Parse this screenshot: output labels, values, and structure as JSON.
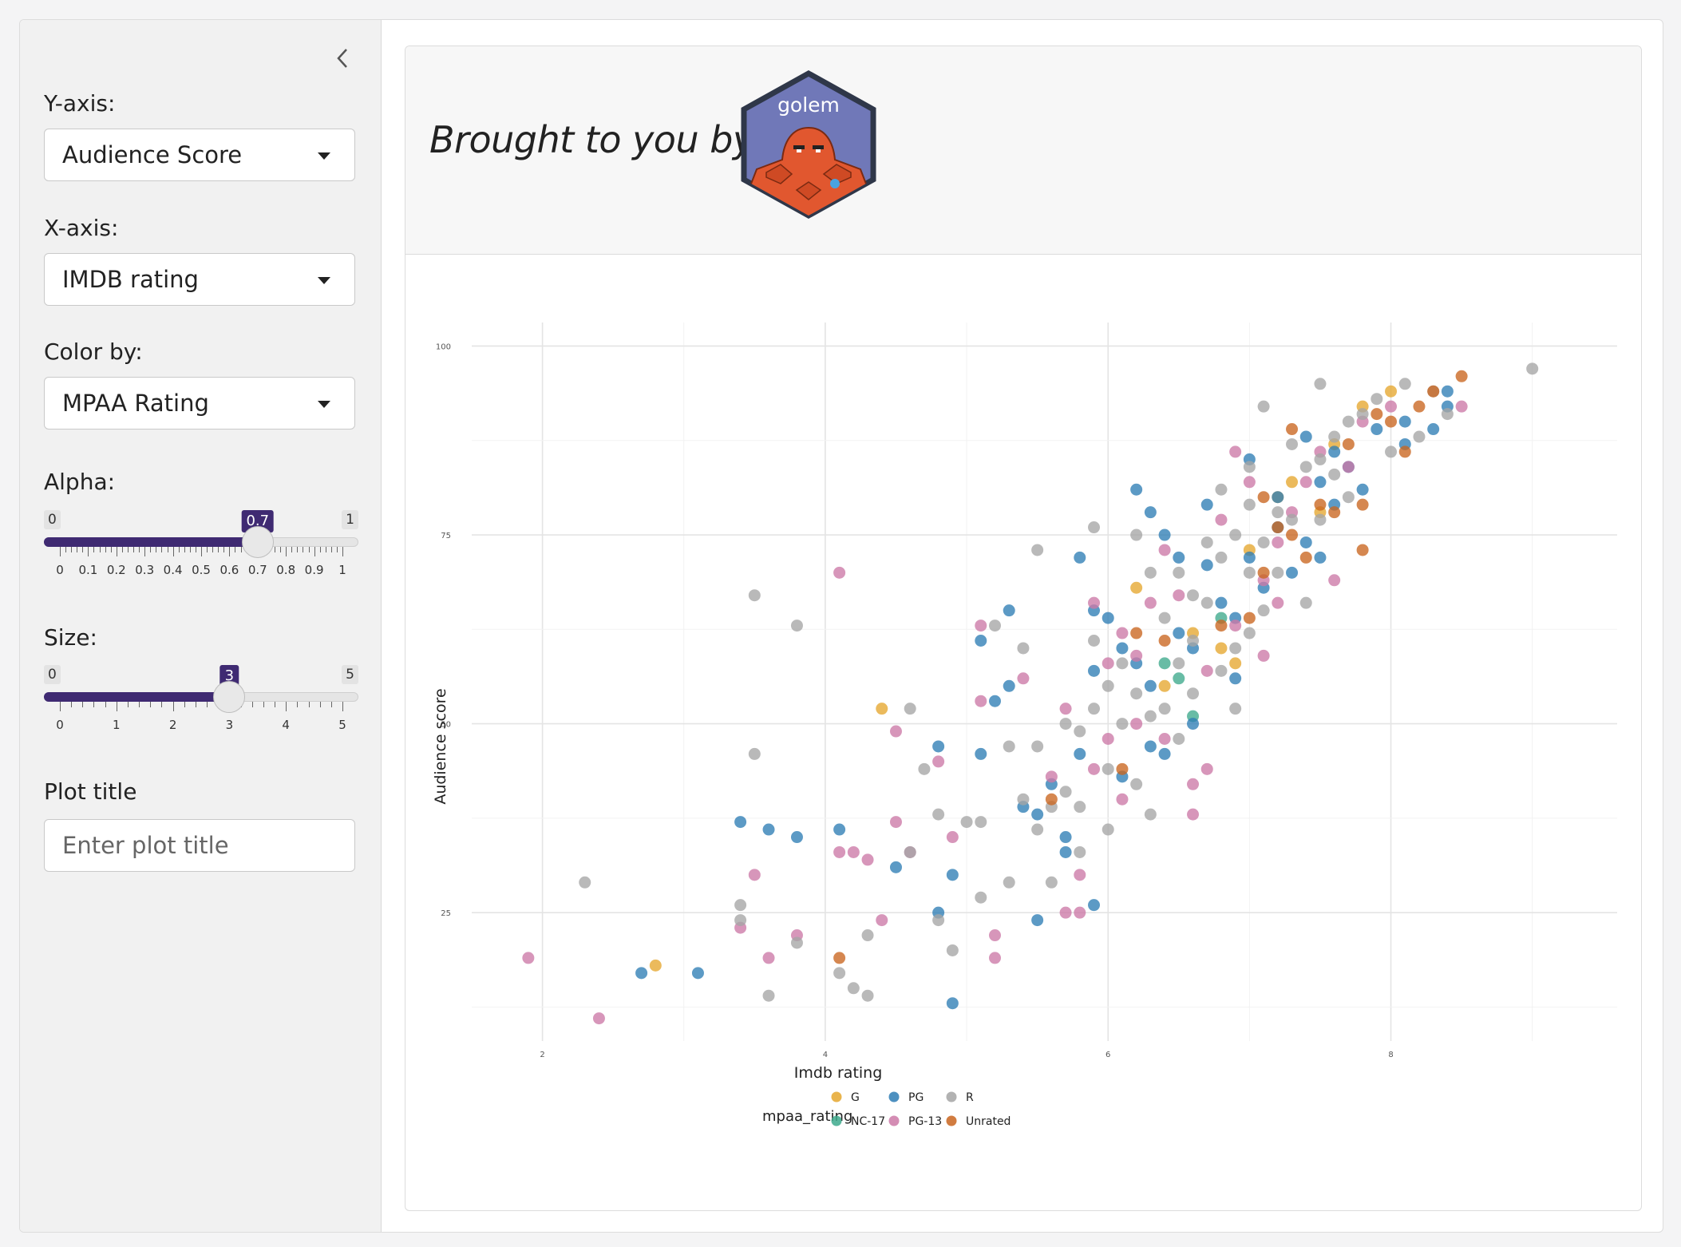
{
  "sidebar": {
    "collapse_icon": "chevron-left-icon",
    "y_axis": {
      "label": "Y-axis:",
      "value": "Audience Score"
    },
    "x_axis": {
      "label": "X-axis:",
      "value": "IMDB rating"
    },
    "color_by": {
      "label": "Color by:",
      "value": "MPAA Rating"
    },
    "alpha": {
      "label": "Alpha:",
      "min": "0",
      "max": "1",
      "value": "0.7",
      "fraction": 0.7,
      "ticks": [
        "0",
        "0.1",
        "0.2",
        "0.3",
        "0.4",
        "0.5",
        "0.6",
        "0.7",
        "0.8",
        "0.9",
        "1"
      ]
    },
    "size": {
      "label": "Size:",
      "min": "0",
      "max": "5",
      "value": "3",
      "fraction": 0.6,
      "ticks": [
        "0",
        "1",
        "2",
        "3",
        "4",
        "5"
      ]
    },
    "plot_title": {
      "label": "Plot title",
      "placeholder": "Enter plot title",
      "value": ""
    }
  },
  "header": {
    "tagline": "Brought to you by",
    "logo_text": "golem"
  },
  "colors": {
    "accent": "#3f2a72",
    "G": "#E5A72E",
    "NC-17": "#3DA98C",
    "PG": "#2E7DB5",
    "PG-13": "#CC79A7",
    "R": "#A5A5A5",
    "Unrated": "#C9651F"
  },
  "chart_data": {
    "type": "scatter",
    "xlabel": "Imdb rating",
    "ylabel": "Audience score",
    "xlim": [
      1.5,
      9.6
    ],
    "ylim": [
      8,
      101
    ],
    "xticks": [
      2,
      4,
      6,
      8
    ],
    "yticks": [
      25,
      50,
      75,
      100
    ],
    "grid": true,
    "legend_title": "mpaa_rating",
    "legend_position": "bottom",
    "legend": [
      "G",
      "PG",
      "R",
      "NC-17",
      "PG-13",
      "Unrated"
    ],
    "series": [
      {
        "name": "G",
        "points": [
          [
            2.8,
            18
          ],
          [
            4.4,
            52
          ],
          [
            6.4,
            55
          ],
          [
            6.6,
            62
          ],
          [
            6.8,
            60
          ],
          [
            7.0,
            73
          ],
          [
            7.2,
            80
          ],
          [
            7.3,
            82
          ],
          [
            7.5,
            78
          ],
          [
            7.6,
            87
          ],
          [
            7.8,
            92
          ],
          [
            8.0,
            94
          ],
          [
            6.9,
            58
          ],
          [
            6.2,
            68
          ]
        ]
      },
      {
        "name": "NC-17",
        "points": [
          [
            6.4,
            58
          ],
          [
            6.5,
            56
          ],
          [
            6.6,
            51
          ],
          [
            6.8,
            64
          ]
        ]
      },
      {
        "name": "PG",
        "points": [
          [
            2.7,
            17
          ],
          [
            3.1,
            17
          ],
          [
            3.4,
            37
          ],
          [
            3.6,
            36
          ],
          [
            3.8,
            35
          ],
          [
            4.1,
            36
          ],
          [
            4.5,
            31
          ],
          [
            4.8,
            47
          ],
          [
            4.8,
            25
          ],
          [
            4.9,
            30
          ],
          [
            4.9,
            13
          ],
          [
            5.1,
            61
          ],
          [
            5.1,
            46
          ],
          [
            5.2,
            53
          ],
          [
            5.3,
            65
          ],
          [
            5.3,
            55
          ],
          [
            5.4,
            39
          ],
          [
            5.5,
            24
          ],
          [
            5.6,
            42
          ],
          [
            5.7,
            33
          ],
          [
            5.8,
            46
          ],
          [
            5.8,
            72
          ],
          [
            5.9,
            57
          ],
          [
            5.9,
            26
          ],
          [
            5.9,
            65
          ],
          [
            6.0,
            64
          ],
          [
            6.1,
            43
          ],
          [
            6.2,
            81
          ],
          [
            6.2,
            58
          ],
          [
            6.3,
            78
          ],
          [
            6.3,
            55
          ],
          [
            6.4,
            75
          ],
          [
            6.4,
            46
          ],
          [
            6.5,
            62
          ],
          [
            6.5,
            72
          ],
          [
            6.6,
            60
          ],
          [
            6.6,
            50
          ],
          [
            6.7,
            79
          ],
          [
            6.7,
            71
          ],
          [
            6.8,
            66
          ],
          [
            6.9,
            64
          ],
          [
            6.9,
            56
          ],
          [
            7.0,
            72
          ],
          [
            7.0,
            85
          ],
          [
            7.1,
            68
          ],
          [
            7.2,
            80
          ],
          [
            7.2,
            76
          ],
          [
            7.3,
            70
          ],
          [
            7.4,
            88
          ],
          [
            7.4,
            74
          ],
          [
            7.5,
            82
          ],
          [
            7.5,
            72
          ],
          [
            7.6,
            86
          ],
          [
            7.6,
            79
          ],
          [
            7.7,
            84
          ],
          [
            7.8,
            81
          ],
          [
            7.9,
            89
          ],
          [
            8.1,
            90
          ],
          [
            8.1,
            87
          ],
          [
            8.3,
            89
          ],
          [
            8.4,
            94
          ],
          [
            8.4,
            92
          ],
          [
            5.5,
            38
          ],
          [
            5.7,
            35
          ],
          [
            6.1,
            60
          ],
          [
            6.3,
            47
          ]
        ]
      },
      {
        "name": "PG-13",
        "points": [
          [
            1.9,
            19
          ],
          [
            2.4,
            11
          ],
          [
            3.4,
            23
          ],
          [
            3.5,
            30
          ],
          [
            3.6,
            19
          ],
          [
            3.8,
            22
          ],
          [
            4.1,
            70
          ],
          [
            4.1,
            33
          ],
          [
            4.2,
            33
          ],
          [
            4.3,
            32
          ],
          [
            4.4,
            24
          ],
          [
            4.5,
            37
          ],
          [
            4.5,
            49
          ],
          [
            4.6,
            33
          ],
          [
            4.8,
            45
          ],
          [
            4.9,
            35
          ],
          [
            5.1,
            53
          ],
          [
            5.1,
            63
          ],
          [
            5.2,
            22
          ],
          [
            5.2,
            19
          ],
          [
            5.4,
            56
          ],
          [
            5.6,
            43
          ],
          [
            5.7,
            52
          ],
          [
            5.7,
            25
          ],
          [
            5.8,
            30
          ],
          [
            5.8,
            25
          ],
          [
            5.9,
            66
          ],
          [
            5.9,
            44
          ],
          [
            6.0,
            58
          ],
          [
            6.0,
            48
          ],
          [
            6.1,
            62
          ],
          [
            6.2,
            50
          ],
          [
            6.2,
            59
          ],
          [
            6.3,
            66
          ],
          [
            6.4,
            73
          ],
          [
            6.4,
            48
          ],
          [
            6.5,
            67
          ],
          [
            6.6,
            38
          ],
          [
            6.7,
            57
          ],
          [
            6.7,
            44
          ],
          [
            6.8,
            77
          ],
          [
            6.9,
            63
          ],
          [
            6.9,
            86
          ],
          [
            7.0,
            82
          ],
          [
            7.1,
            69
          ],
          [
            7.1,
            59
          ],
          [
            7.2,
            74
          ],
          [
            7.2,
            66
          ],
          [
            7.3,
            78
          ],
          [
            7.4,
            82
          ],
          [
            7.5,
            86
          ],
          [
            7.6,
            69
          ],
          [
            7.7,
            84
          ],
          [
            7.8,
            90
          ],
          [
            8.0,
            92
          ],
          [
            8.5,
            92
          ],
          [
            6.1,
            40
          ],
          [
            6.6,
            42
          ]
        ]
      },
      {
        "name": "R",
        "points": [
          [
            2.3,
            29
          ],
          [
            3.4,
            24
          ],
          [
            3.4,
            26
          ],
          [
            3.5,
            67
          ],
          [
            3.5,
            46
          ],
          [
            3.6,
            14
          ],
          [
            3.8,
            63
          ],
          [
            3.8,
            21
          ],
          [
            4.1,
            17
          ],
          [
            4.2,
            15
          ],
          [
            4.3,
            14
          ],
          [
            4.3,
            22
          ],
          [
            4.6,
            52
          ],
          [
            4.6,
            33
          ],
          [
            4.7,
            44
          ],
          [
            4.8,
            24
          ],
          [
            4.8,
            38
          ],
          [
            4.9,
            20
          ],
          [
            5.0,
            37
          ],
          [
            5.1,
            27
          ],
          [
            5.1,
            37
          ],
          [
            5.2,
            63
          ],
          [
            5.3,
            47
          ],
          [
            5.3,
            29
          ],
          [
            5.4,
            40
          ],
          [
            5.4,
            60
          ],
          [
            5.5,
            73
          ],
          [
            5.5,
            47
          ],
          [
            5.5,
            36
          ],
          [
            5.6,
            29
          ],
          [
            5.6,
            39
          ],
          [
            5.7,
            41
          ],
          [
            5.7,
            50
          ],
          [
            5.8,
            39
          ],
          [
            5.8,
            49
          ],
          [
            5.8,
            33
          ],
          [
            5.9,
            76
          ],
          [
            5.9,
            61
          ],
          [
            5.9,
            52
          ],
          [
            6.0,
            55
          ],
          [
            6.0,
            44
          ],
          [
            6.0,
            36
          ],
          [
            6.1,
            58
          ],
          [
            6.1,
            50
          ],
          [
            6.2,
            75
          ],
          [
            6.2,
            54
          ],
          [
            6.2,
            42
          ],
          [
            6.3,
            70
          ],
          [
            6.3,
            51
          ],
          [
            6.3,
            38
          ],
          [
            6.4,
            64
          ],
          [
            6.4,
            52
          ],
          [
            6.5,
            70
          ],
          [
            6.5,
            48
          ],
          [
            6.6,
            61
          ],
          [
            6.6,
            54
          ],
          [
            6.7,
            74
          ],
          [
            6.7,
            66
          ],
          [
            6.8,
            81
          ],
          [
            6.8,
            72
          ],
          [
            6.8,
            57
          ],
          [
            6.9,
            75
          ],
          [
            6.9,
            60
          ],
          [
            7.0,
            84
          ],
          [
            7.0,
            79
          ],
          [
            7.0,
            62
          ],
          [
            7.1,
            92
          ],
          [
            7.1,
            74
          ],
          [
            7.2,
            78
          ],
          [
            7.2,
            70
          ],
          [
            7.3,
            87
          ],
          [
            7.3,
            77
          ],
          [
            7.4,
            84
          ],
          [
            7.4,
            66
          ],
          [
            7.5,
            95
          ],
          [
            7.5,
            85
          ],
          [
            7.5,
            77
          ],
          [
            7.6,
            88
          ],
          [
            7.6,
            83
          ],
          [
            7.7,
            90
          ],
          [
            7.7,
            80
          ],
          [
            7.8,
            91
          ],
          [
            7.9,
            93
          ],
          [
            8.0,
            86
          ],
          [
            8.1,
            95
          ],
          [
            8.2,
            88
          ],
          [
            8.3,
            94
          ],
          [
            8.4,
            91
          ],
          [
            9.0,
            97
          ],
          [
            6.9,
            52
          ],
          [
            7.1,
            65
          ],
          [
            6.5,
            58
          ],
          [
            7.0,
            70
          ],
          [
            6.6,
            67
          ]
        ]
      },
      {
        "name": "Unrated",
        "points": [
          [
            4.1,
            19
          ],
          [
            5.6,
            40
          ],
          [
            6.1,
            44
          ],
          [
            6.2,
            62
          ],
          [
            6.8,
            63
          ],
          [
            7.0,
            64
          ],
          [
            7.1,
            80
          ],
          [
            7.2,
            76
          ],
          [
            7.3,
            75
          ],
          [
            7.3,
            89
          ],
          [
            7.4,
            72
          ],
          [
            7.5,
            79
          ],
          [
            7.6,
            78
          ],
          [
            7.7,
            87
          ],
          [
            7.8,
            79
          ],
          [
            7.8,
            73
          ],
          [
            7.9,
            91
          ],
          [
            8.0,
            90
          ],
          [
            8.1,
            86
          ],
          [
            8.2,
            92
          ],
          [
            8.3,
            94
          ],
          [
            8.5,
            96
          ],
          [
            7.1,
            70
          ],
          [
            6.4,
            61
          ]
        ]
      }
    ]
  }
}
